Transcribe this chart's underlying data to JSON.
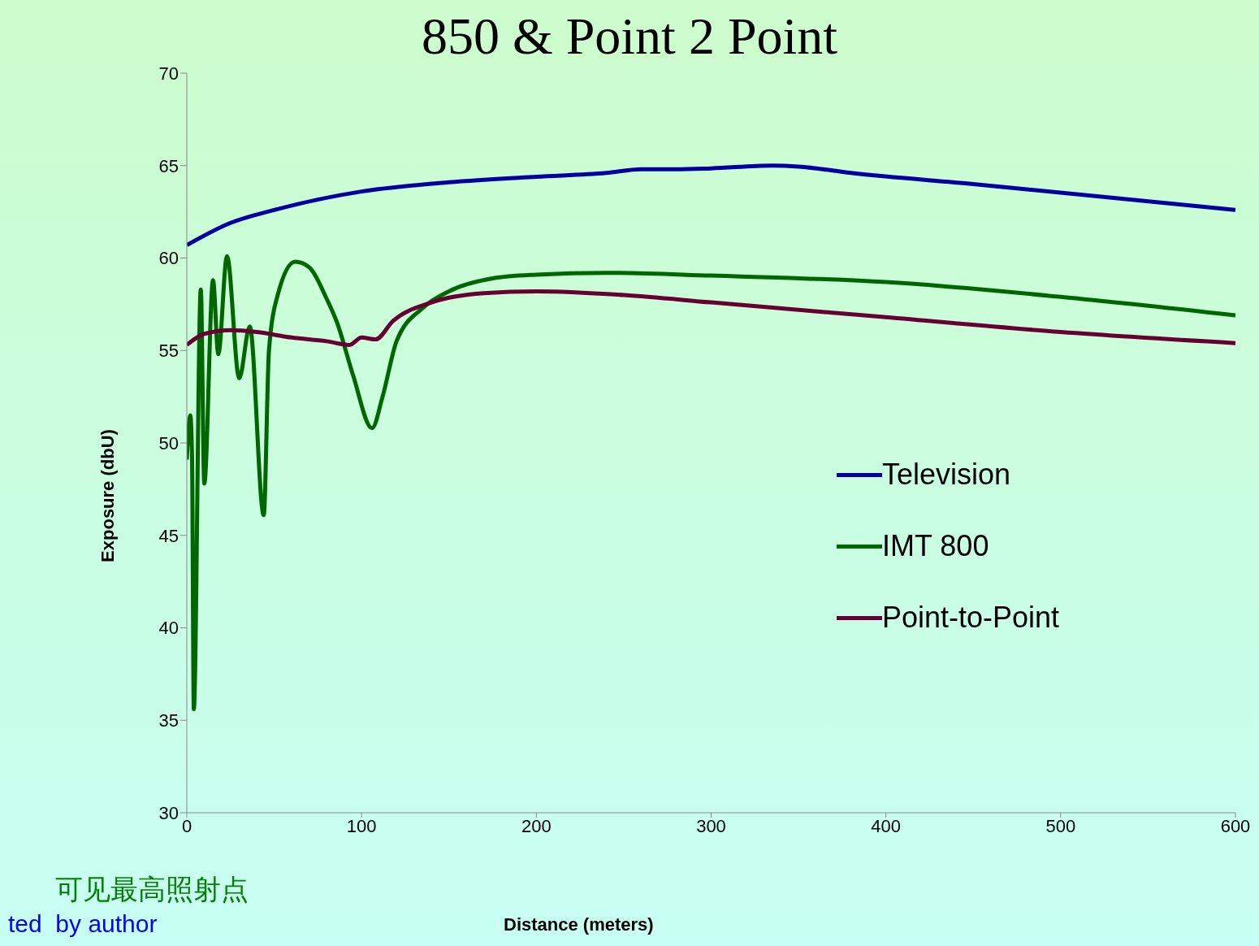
{
  "chart_data": {
    "type": "line",
    "title": "850 & Point 2 Point",
    "xlabel": "Distance (meters)",
    "ylabel": "Exposure (dbU)",
    "xlim": [
      0,
      600
    ],
    "xticks": [
      0,
      100,
      200,
      300,
      400,
      500,
      600
    ],
    "ylim": [
      30,
      70
    ],
    "yticks": [
      30,
      35,
      40,
      45,
      50,
      55,
      60,
      65,
      70
    ],
    "grid": false,
    "legend": "right",
    "marker": "none",
    "line_style": "solid",
    "annotations": [
      "可见最高照射点",
      "ted  by author"
    ],
    "series": [
      {
        "name": "Television",
        "color": "#0000a0",
        "x": [
          0,
          25,
          50,
          100,
          150,
          200,
          240,
          260,
          280,
          300,
          335,
          350,
          380,
          450,
          600
        ],
        "values": [
          60.7,
          61.9,
          62.6,
          63.6,
          64.1,
          64.4,
          64.6,
          64.8,
          64.8,
          64.85,
          65.0,
          64.95,
          64.6,
          64.0,
          62.6
        ]
      },
      {
        "name": "IMT 800",
        "color": "#006600",
        "x": [
          0,
          2,
          3,
          4,
          8,
          10,
          15,
          18,
          23,
          30,
          36,
          44,
          47,
          52,
          62,
          70,
          80,
          86,
          95,
          106,
          112,
          120,
          135,
          150,
          175,
          200,
          240,
          300,
          400,
          500,
          600
        ],
        "values": [
          49.1,
          51.5,
          49.2,
          35.6,
          58.3,
          47.8,
          58.8,
          54.8,
          60.1,
          53.5,
          56.3,
          46.1,
          55,
          58,
          59.8,
          59.5,
          57.8,
          56.5,
          53.7,
          50.8,
          52.5,
          55.5,
          57.3,
          58.2,
          58.9,
          59.1,
          59.2,
          59.05,
          58.7,
          57.9,
          56.9
        ]
      },
      {
        "name": "Point-to-Point",
        "color": "#660033",
        "x": [
          0,
          10,
          25,
          40,
          60,
          80,
          93,
          100,
          108,
          118,
          140,
          170,
          200,
          250,
          300,
          400,
          500,
          600
        ],
        "values": [
          55.3,
          55.9,
          56.1,
          56.0,
          55.7,
          55.5,
          55.3,
          55.7,
          55.6,
          56.6,
          57.6,
          58.1,
          58.2,
          58.0,
          57.6,
          56.8,
          56.0,
          55.4
        ]
      }
    ]
  }
}
